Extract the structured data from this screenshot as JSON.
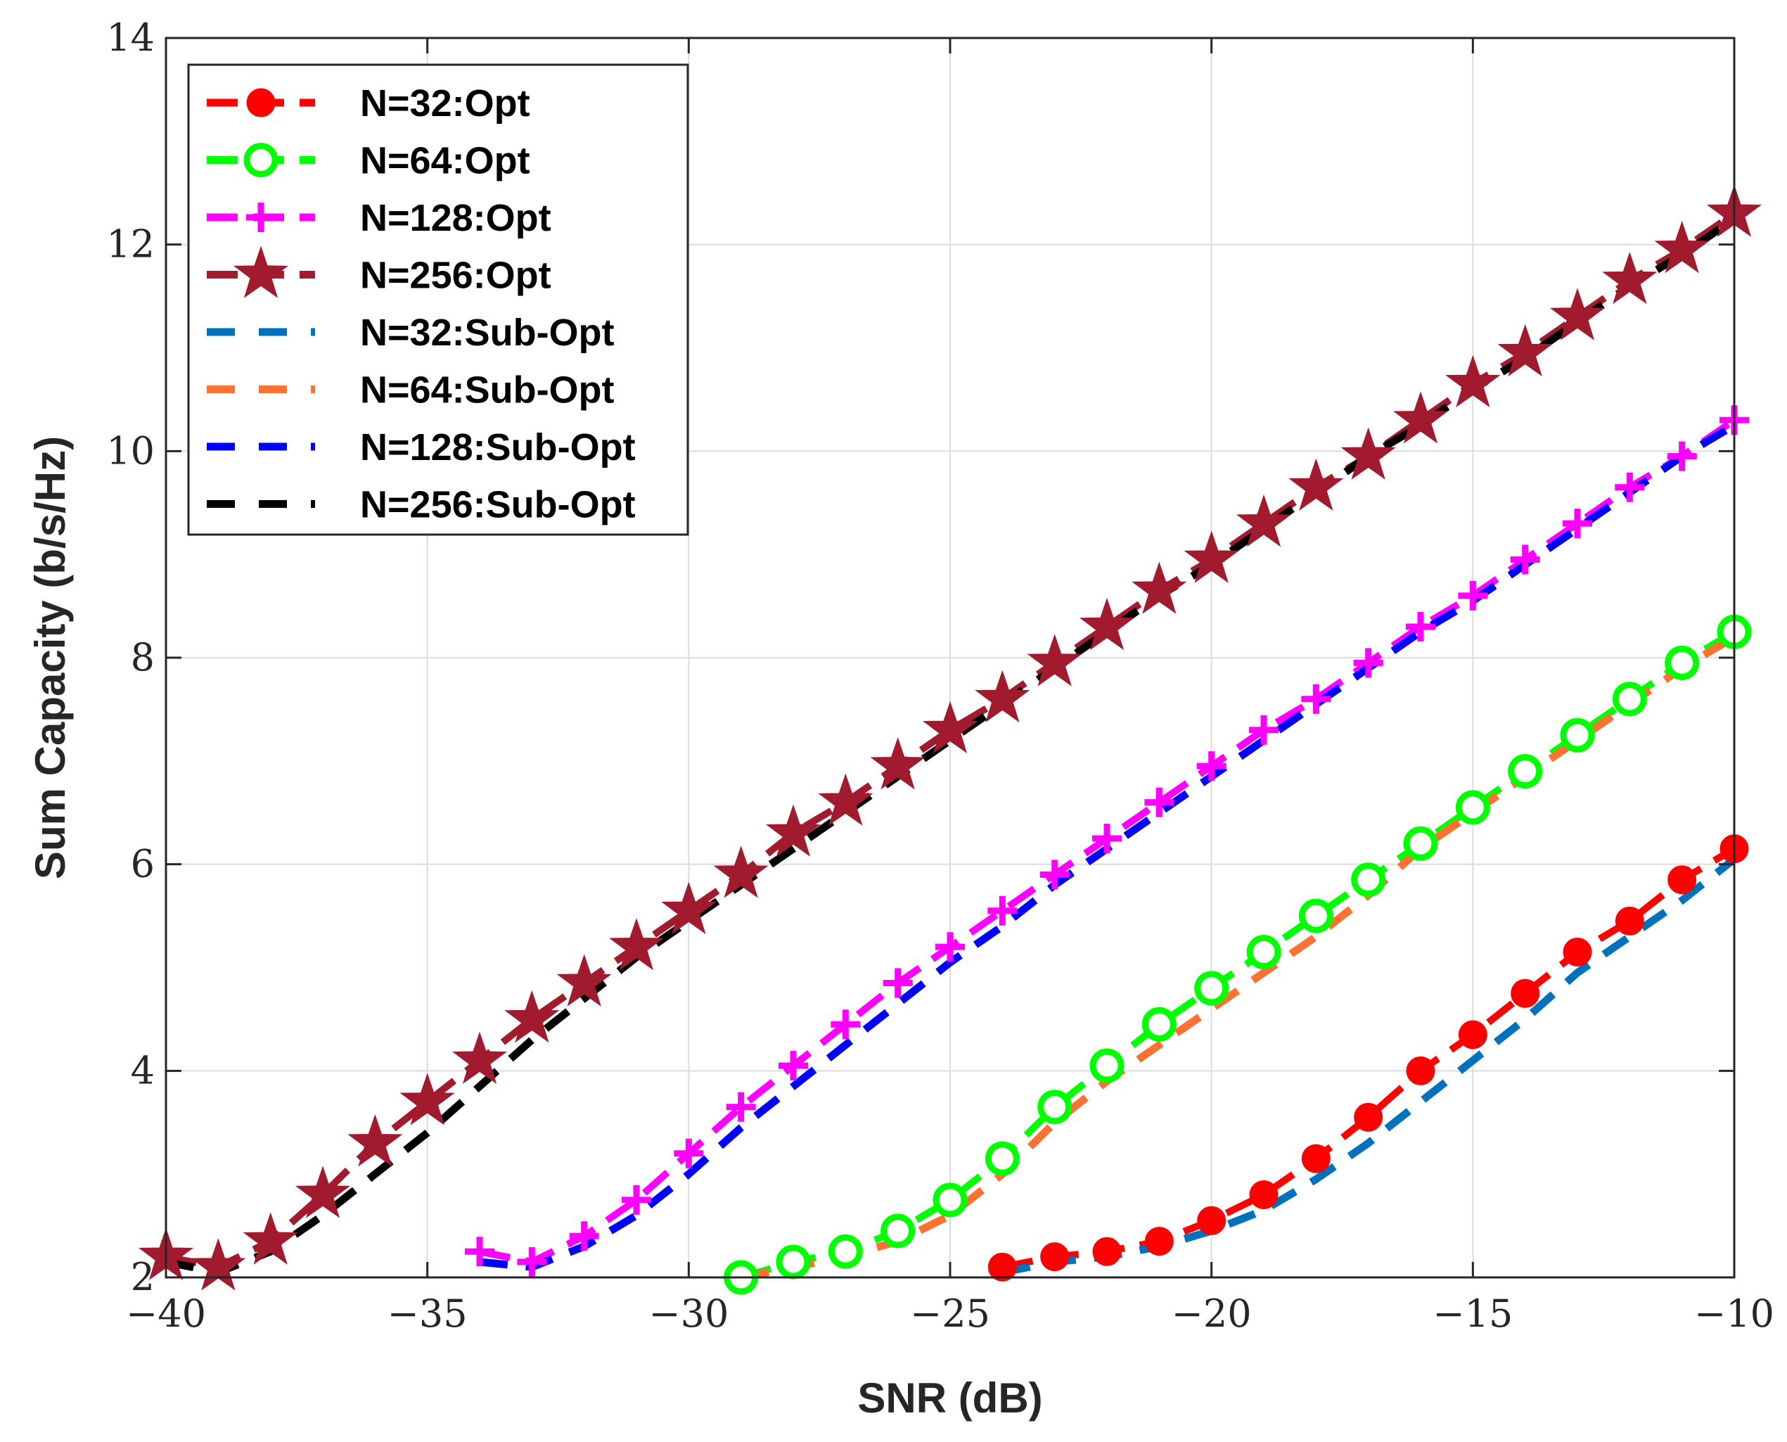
{
  "chart_data": {
    "type": "line",
    "title": "",
    "xlabel": "SNR (dB)",
    "ylabel": "Sum Capacity (b/s/Hz)",
    "xlim": [
      -40,
      -10
    ],
    "ylim": [
      2,
      14
    ],
    "xticks": [
      -40,
      -35,
      -30,
      -25,
      -20,
      -15,
      -10
    ],
    "xtick_labels": [
      "−40",
      "−35",
      "−30",
      "−25",
      "−20",
      "−15",
      "−10"
    ],
    "yticks": [
      2,
      4,
      6,
      8,
      10,
      12,
      14
    ],
    "ytick_labels": [
      "2",
      "4",
      "6",
      "8",
      "10",
      "12",
      "14"
    ],
    "grid": true,
    "legend_position": "top-left",
    "series": [
      {
        "name": "N=32:Opt",
        "color": "#ff0000",
        "marker": "filled-circle",
        "style": "dashed",
        "x": [
          -24,
          -23,
          -22,
          -21,
          -20,
          -19,
          -18,
          -17,
          -16,
          -15,
          -14,
          -13,
          -12,
          -11,
          -10
        ],
        "y": [
          2.1,
          2.2,
          2.25,
          2.35,
          2.55,
          2.8,
          3.15,
          3.55,
          4.0,
          4.35,
          4.75,
          5.15,
          5.45,
          5.85,
          6.15
        ]
      },
      {
        "name": "N=64:Opt",
        "color": "#00ff00",
        "marker": "open-circle",
        "style": "dashed",
        "x": [
          -29,
          -28,
          -27,
          -26,
          -25,
          -24,
          -23,
          -22,
          -21,
          -20,
          -19,
          -18,
          -17,
          -16,
          -15,
          -14,
          -13,
          -12,
          -11,
          -10
        ],
        "y": [
          2.0,
          2.15,
          2.25,
          2.45,
          2.75,
          3.15,
          3.65,
          4.05,
          4.45,
          4.8,
          5.15,
          5.5,
          5.85,
          6.2,
          6.55,
          6.9,
          7.25,
          7.6,
          7.95,
          8.25
        ]
      },
      {
        "name": "N=128:Opt",
        "color": "#ff00ff",
        "marker": "plus",
        "style": "dashed",
        "x": [
          -34,
          -33,
          -32,
          -31,
          -30,
          -29,
          -28,
          -27,
          -26,
          -25,
          -24,
          -23,
          -22,
          -21,
          -20,
          -19,
          -18,
          -17,
          -16,
          -15,
          -14,
          -13,
          -12,
          -11,
          -10
        ],
        "y": [
          2.25,
          2.15,
          2.4,
          2.75,
          3.2,
          3.65,
          4.05,
          4.45,
          4.85,
          5.2,
          5.55,
          5.9,
          6.25,
          6.6,
          6.95,
          7.3,
          7.6,
          7.95,
          8.3,
          8.6,
          8.95,
          9.3,
          9.65,
          9.95,
          10.3
        ]
      },
      {
        "name": "N=256:Opt",
        "color": "#a11a2e",
        "marker": "star",
        "style": "dashed",
        "x": [
          -40,
          -39,
          -38,
          -37,
          -36,
          -35,
          -34,
          -33,
          -32,
          -31,
          -30,
          -29,
          -28,
          -27,
          -26,
          -25,
          -24,
          -23,
          -22,
          -21,
          -20,
          -19,
          -18,
          -17,
          -16,
          -15,
          -14,
          -13,
          -12,
          -11,
          -10
        ],
        "y": [
          2.2,
          2.1,
          2.35,
          2.8,
          3.3,
          3.7,
          4.1,
          4.5,
          4.85,
          5.2,
          5.55,
          5.9,
          6.3,
          6.6,
          6.95,
          7.3,
          7.6,
          7.95,
          8.3,
          8.65,
          8.95,
          9.3,
          9.65,
          9.95,
          10.3,
          10.65,
          10.95,
          11.3,
          11.65,
          11.95,
          12.3
        ]
      },
      {
        "name": "N=32:Sub-Opt",
        "color": "#0072bd",
        "marker": "none",
        "style": "dashed",
        "x": [
          -24,
          -23,
          -22,
          -21,
          -20,
          -19,
          -18,
          -17,
          -16,
          -15,
          -14,
          -13,
          -12,
          -11,
          -10
        ],
        "y": [
          2.05,
          2.15,
          2.2,
          2.3,
          2.45,
          2.65,
          2.95,
          3.3,
          3.7,
          4.1,
          4.5,
          4.95,
          5.3,
          5.65,
          6.05
        ]
      },
      {
        "name": "N=64:Sub-Opt",
        "color": "#ff7033",
        "marker": "none",
        "style": "dashed",
        "x": [
          -29,
          -28,
          -27,
          -26,
          -25,
          -24,
          -23,
          -22,
          -21,
          -20,
          -19,
          -18,
          -17,
          -16,
          -15,
          -14,
          -13,
          -12,
          -11,
          -10
        ],
        "y": [
          2.0,
          2.1,
          2.2,
          2.35,
          2.6,
          3.0,
          3.5,
          3.9,
          4.25,
          4.6,
          4.95,
          5.3,
          5.7,
          6.15,
          6.5,
          6.85,
          7.2,
          7.55,
          7.9,
          8.2
        ]
      },
      {
        "name": "N=128:Sub-Opt",
        "color": "#0000ff",
        "marker": "none",
        "style": "dashed",
        "x": [
          -34,
          -33,
          -32,
          -31,
          -30,
          -29,
          -28,
          -27,
          -26,
          -25,
          -24,
          -23,
          -22,
          -21,
          -20,
          -19,
          -18,
          -17,
          -16,
          -15,
          -14,
          -13,
          -12,
          -11,
          -10
        ],
        "y": [
          2.15,
          2.1,
          2.3,
          2.6,
          3.0,
          3.45,
          3.85,
          4.25,
          4.65,
          5.05,
          5.4,
          5.8,
          6.15,
          6.5,
          6.85,
          7.2,
          7.55,
          7.9,
          8.25,
          8.55,
          8.9,
          9.25,
          9.6,
          9.95,
          10.25
        ]
      },
      {
        "name": "N=256:Sub-Opt",
        "color": "#000000",
        "marker": "none",
        "style": "dashed",
        "x": [
          -40,
          -39,
          -38,
          -37,
          -36,
          -35,
          -34,
          -33,
          -32,
          -31,
          -30,
          -29,
          -28,
          -27,
          -26,
          -25,
          -24,
          -23,
          -22,
          -21,
          -20,
          -19,
          -18,
          -17,
          -16,
          -15,
          -14,
          -13,
          -12,
          -11,
          -10
        ],
        "y": [
          2.15,
          2.05,
          2.25,
          2.6,
          3.0,
          3.4,
          3.85,
          4.3,
          4.7,
          5.1,
          5.45,
          5.8,
          6.15,
          6.5,
          6.85,
          7.2,
          7.55,
          7.9,
          8.25,
          8.6,
          8.9,
          9.25,
          9.6,
          9.95,
          10.25,
          10.6,
          10.9,
          11.25,
          11.6,
          11.9,
          12.25
        ]
      }
    ]
  }
}
